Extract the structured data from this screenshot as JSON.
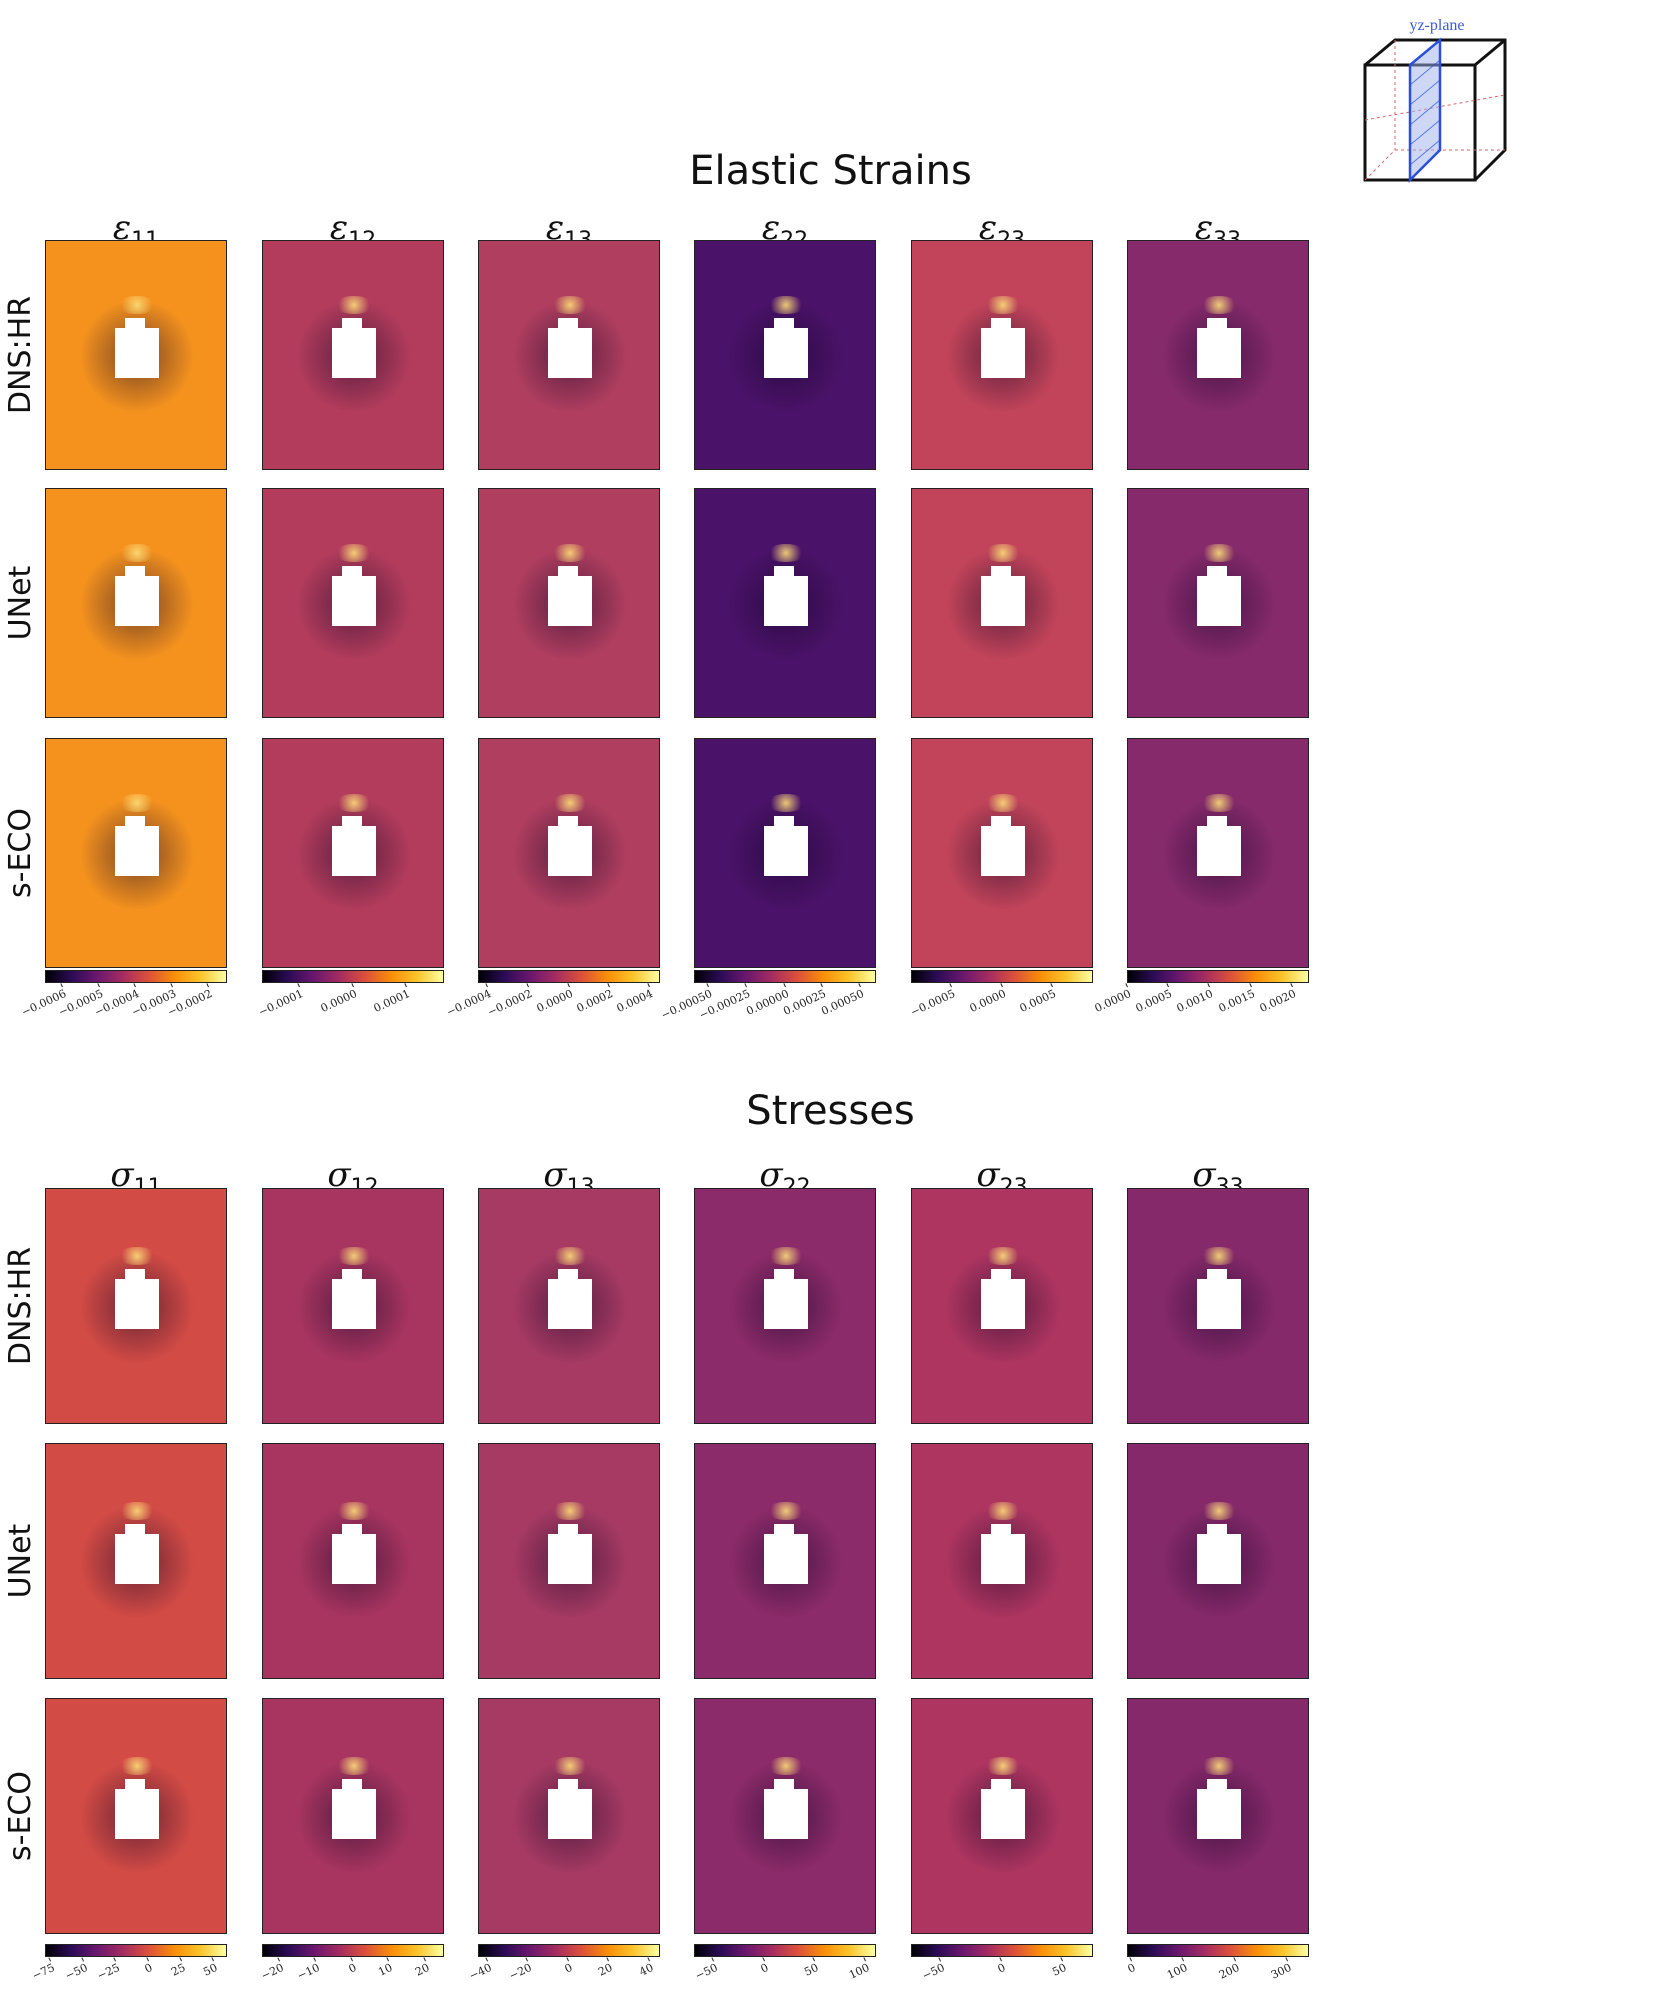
{
  "inset": {
    "label": "yz-plane"
  },
  "sections": [
    {
      "key": "strains",
      "title": "Elastic Strains",
      "symbol": "ε",
      "columns": [
        {
          "sub": "11",
          "ticks": [
            "−0.0006",
            "−0.0005",
            "−0.0004",
            "−0.0003",
            "−0.0002"
          ],
          "range": [
            -0.00065,
            -0.00015
          ]
        },
        {
          "sub": "12",
          "ticks": [
            "−0.0001",
            "0.0000",
            "0.0001"
          ],
          "range": [
            -0.00017,
            0.00017
          ]
        },
        {
          "sub": "13",
          "ticks": [
            "−0.0004",
            "−0.0002",
            "0.0000",
            "0.0002",
            "0.0004"
          ],
          "range": [
            -0.00045,
            0.00045
          ]
        },
        {
          "sub": "22",
          "ticks": [
            "−0.00050",
            "−0.00025",
            "0.00000",
            "0.00025",
            "0.00050"
          ],
          "range": [
            -0.0006,
            0.0006
          ]
        },
        {
          "sub": "23",
          "ticks": [
            "−0.0005",
            "0.0000",
            "0.0005"
          ],
          "range": [
            -0.0009,
            0.0009
          ]
        },
        {
          "sub": "33",
          "ticks": [
            "0.0000",
            "0.0005",
            "0.0010",
            "0.0015",
            "0.0020"
          ],
          "range": [
            0.0,
            0.0022
          ]
        }
      ],
      "rows": [
        "DNS:HR",
        "UNet",
        "s-ECO"
      ]
    },
    {
      "key": "stresses",
      "title": "Stresses",
      "symbol": "σ",
      "columns": [
        {
          "sub": "11",
          "ticks": [
            "−75",
            "−50",
            "−25",
            "0",
            "25",
            "50"
          ],
          "range": [
            -80,
            60
          ]
        },
        {
          "sub": "12",
          "ticks": [
            "−20",
            "−10",
            "0",
            "10",
            "20"
          ],
          "range": [
            -25,
            25
          ]
        },
        {
          "sub": "13",
          "ticks": [
            "−40",
            "−20",
            "0",
            "20",
            "40"
          ],
          "range": [
            -45,
            45
          ]
        },
        {
          "sub": "22",
          "ticks": [
            "−50",
            "0",
            "50",
            "100"
          ],
          "range": [
            -70,
            110
          ]
        },
        {
          "sub": "23",
          "ticks": [
            "−50",
            "0",
            "50"
          ],
          "range": [
            -75,
            75
          ]
        },
        {
          "sub": "33",
          "ticks": [
            "0",
            "100",
            "200",
            "300"
          ],
          "range": [
            -10,
            340
          ]
        }
      ],
      "rows": [
        "DNS:HR",
        "UNet",
        "s-ECO"
      ]
    }
  ],
  "chart_data": {
    "type": "heatmap",
    "colormap": "inferno",
    "panels_per_section": {
      "rows": 3,
      "columns": 6
    },
    "row_models": [
      "DNS:HR",
      "UNet",
      "s-ECO"
    ],
    "strain_components": [
      "ε11",
      "ε12",
      "ε13",
      "ε22",
      "ε23",
      "ε33"
    ],
    "stress_components": [
      "σ11",
      "σ12",
      "σ13",
      "σ22",
      "σ23",
      "σ33"
    ],
    "colors": {
      "strain_bg": [
        "#f5921e",
        "#b33c5c",
        "#b03e5f",
        "#4a1268",
        "#c2445a",
        "#862a6b"
      ],
      "stress_bg": [
        "#d34b45",
        "#a83560",
        "#a63a63",
        "#8c2b69",
        "#ad3560",
        "#86296a"
      ]
    }
  }
}
